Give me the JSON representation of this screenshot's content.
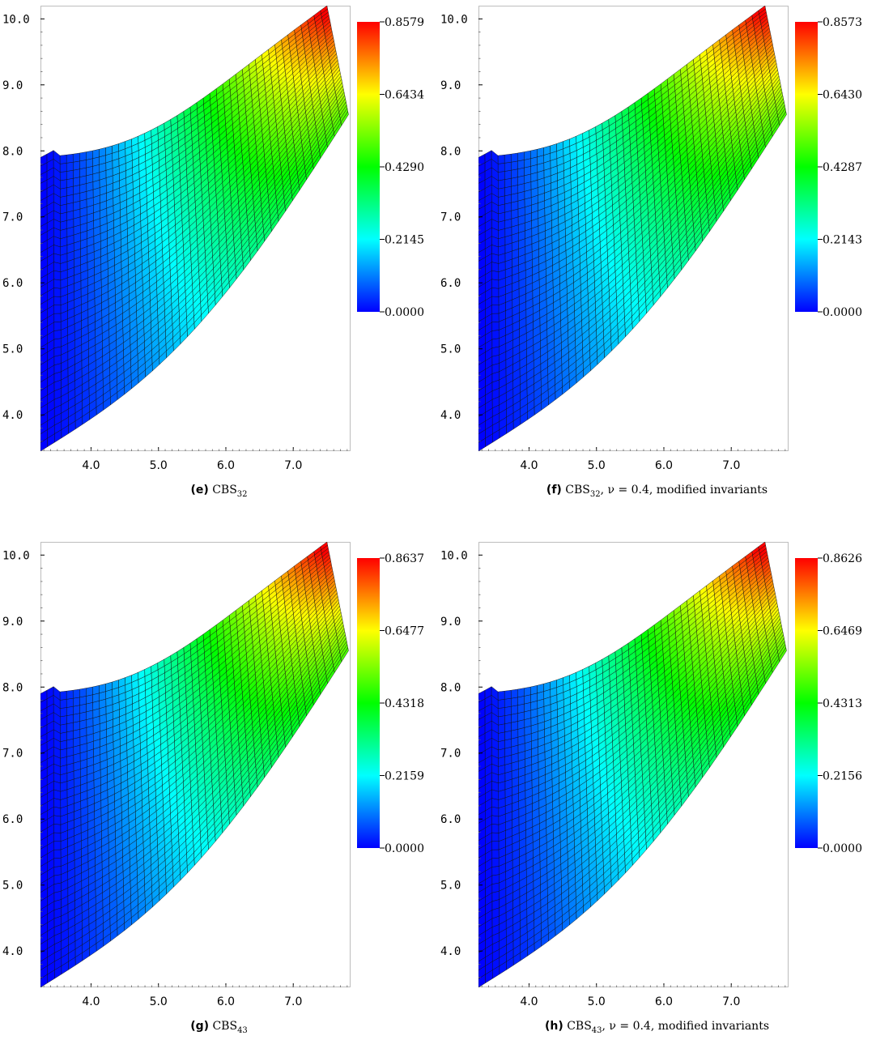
{
  "chart_data": [
    {
      "type": "heatmap",
      "caption": {
        "tag": "(e)",
        "base": "CBS",
        "sub": "32",
        "rest": ""
      },
      "xticks": [
        "4.0",
        "5.0",
        "6.0",
        "7.0"
      ],
      "yticks": [
        "10.0",
        "9.0",
        "8.0",
        "7.0",
        "6.0",
        "5.0",
        "4.0"
      ],
      "xlim": [
        3.25,
        7.85
      ],
      "ylim": [
        3.45,
        10.2
      ],
      "colorbar": {
        "ticks": [
          "0.8579",
          "0.6434",
          "0.4290",
          "0.2145",
          "0.0000"
        ],
        "min": 0.0,
        "max": 0.8579
      },
      "colormap": [
        "#0000ff",
        "#00ffff",
        "#00ff00",
        "#ffff00",
        "#ff0000"
      ]
    },
    {
      "type": "heatmap",
      "caption": {
        "tag": "(f)",
        "base": "CBS",
        "sub": "32",
        "rest": ", ν = 0.4, modified invariants"
      },
      "xticks": [
        "4.0",
        "5.0",
        "6.0",
        "7.0"
      ],
      "yticks": [
        "10.0",
        "9.0",
        "8.0",
        "7.0",
        "6.0",
        "5.0",
        "4.0"
      ],
      "xlim": [
        3.25,
        7.85
      ],
      "ylim": [
        3.45,
        10.2
      ],
      "colorbar": {
        "ticks": [
          "0.8573",
          "0.6430",
          "0.4287",
          "0.2143",
          "0.0000"
        ],
        "min": 0.0,
        "max": 0.8573
      },
      "colormap": [
        "#0000ff",
        "#00ffff",
        "#00ff00",
        "#ffff00",
        "#ff0000"
      ]
    },
    {
      "type": "heatmap",
      "caption": {
        "tag": "(g)",
        "base": "CBS",
        "sub": "43",
        "rest": ""
      },
      "xticks": [
        "4.0",
        "5.0",
        "6.0",
        "7.0"
      ],
      "yticks": [
        "10.0",
        "9.0",
        "8.0",
        "7.0",
        "6.0",
        "5.0",
        "4.0"
      ],
      "xlim": [
        3.25,
        7.85
      ],
      "ylim": [
        3.45,
        10.2
      ],
      "colorbar": {
        "ticks": [
          "0.8637",
          "0.6477",
          "0.4318",
          "0.2159",
          "0.0000"
        ],
        "min": 0.0,
        "max": 0.8637
      },
      "colormap": [
        "#0000ff",
        "#00ffff",
        "#00ff00",
        "#ffff00",
        "#ff0000"
      ]
    },
    {
      "type": "heatmap",
      "caption": {
        "tag": "(h)",
        "base": "CBS",
        "sub": "43",
        "rest": ", ν = 0.4, modified invariants"
      },
      "xticks": [
        "4.0",
        "5.0",
        "6.0",
        "7.0"
      ],
      "yticks": [
        "10.0",
        "9.0",
        "8.0",
        "7.0",
        "6.0",
        "5.0",
        "4.0"
      ],
      "xlim": [
        3.25,
        7.85
      ],
      "ylim": [
        3.45,
        10.2
      ],
      "colorbar": {
        "ticks": [
          "0.8626",
          "0.6469",
          "0.4313",
          "0.2156",
          "0.0000"
        ],
        "min": 0.0,
        "max": 0.8626
      },
      "colormap": [
        "#0000ff",
        "#00ffff",
        "#00ff00",
        "#ffff00",
        "#ff0000"
      ]
    }
  ]
}
